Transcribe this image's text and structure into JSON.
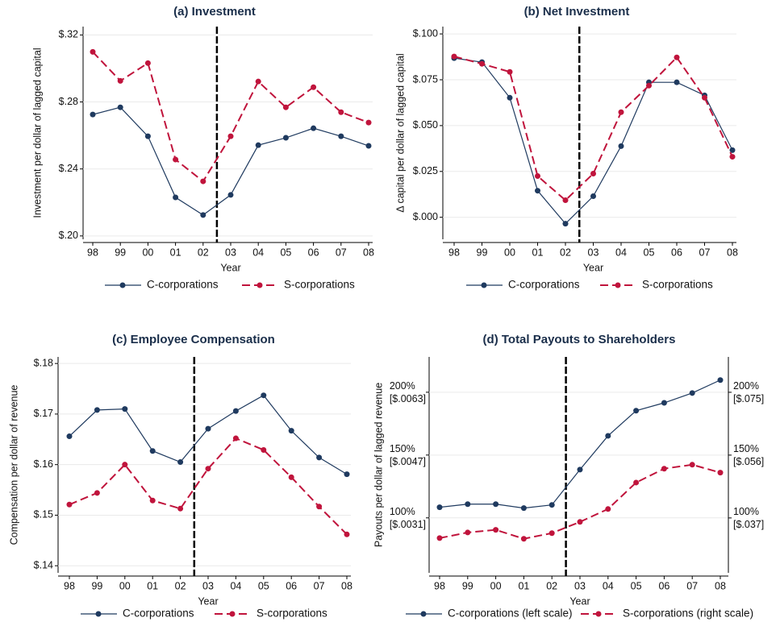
{
  "chart_data": [
    {
      "type": "line",
      "title": "(a) Investment",
      "xlabel": "Year",
      "ylabel": "Investment per dollar of lagged capital",
      "categories": [
        "98",
        "99",
        "00",
        "01",
        "02",
        "03",
        "04",
        "05",
        "06",
        "07",
        "08"
      ],
      "series": [
        {
          "name": "C-corporations",
          "color": "#1f3a5f",
          "values": [
            0.2725,
            0.2768,
            0.2595,
            0.223,
            0.2125,
            0.2245,
            0.2542,
            0.2586,
            0.2643,
            0.2595,
            0.2538
          ]
        },
        {
          "name": "S-corporations",
          "color": "#c0143c",
          "values": [
            0.3099,
            0.2926,
            0.3032,
            0.2456,
            0.2326,
            0.2595,
            0.2922,
            0.2768,
            0.2888,
            0.2739,
            0.2677
          ]
        }
      ],
      "ylim": [
        0.198,
        0.325
      ],
      "yticks": [
        {
          "value": 0.2,
          "label": "$.20"
        },
        {
          "value": 0.24,
          "label": "$.24"
        },
        {
          "value": 0.28,
          "label": "$.28"
        },
        {
          "value": 0.32,
          "label": "$.32"
        }
      ],
      "grid": true
    },
    {
      "type": "line",
      "title": "(b) Net Investment",
      "xlabel": "Year",
      "ylabel": "Δ capital per dollar of lagged capital",
      "categories": [
        "98",
        "99",
        "00",
        "01",
        "02",
        "03",
        "04",
        "05",
        "06",
        "07",
        "08"
      ],
      "series": [
        {
          "name": "C-corporations",
          "color": "#1f3a5f",
          "values": [
            0.0868,
            0.0846,
            0.0652,
            0.0145,
            -0.0035,
            0.0115,
            0.0388,
            0.0736,
            0.0736,
            0.0665,
            0.0366
          ]
        },
        {
          "name": "S-corporations",
          "color": "#c0143c",
          "values": [
            0.0877,
            0.0837,
            0.0793,
            0.0225,
            0.0093,
            0.0238,
            0.0573,
            0.0718,
            0.0872,
            0.0652,
            0.033
          ]
        }
      ],
      "ylim": [
        -0.012,
        0.104
      ],
      "yticks": [
        {
          "value": 0,
          "label": "$.000"
        },
        {
          "value": 0.025,
          "label": "$.025"
        },
        {
          "value": 0.05,
          "label": "$.050"
        },
        {
          "value": 0.075,
          "label": "$.075"
        },
        {
          "value": 0.1,
          "label": "$.100"
        }
      ],
      "grid": true
    },
    {
      "type": "line",
      "title": "(c) Employee Compensation",
      "xlabel": "Year",
      "ylabel": "Compensation per dollar of revenue",
      "categories": [
        "98",
        "99",
        "00",
        "01",
        "02",
        "03",
        "04",
        "05",
        "06",
        "07",
        "08"
      ],
      "series": [
        {
          "name": "C-corporations",
          "color": "#1f3a5f",
          "values": [
            0.1656,
            0.1708,
            0.171,
            0.1627,
            0.1605,
            0.1671,
            0.1706,
            0.1737,
            0.1667,
            0.1614,
            0.1581
          ]
        },
        {
          "name": "S-corporations",
          "color": "#c0143c",
          "values": [
            0.1521,
            0.1544,
            0.16,
            0.1529,
            0.1513,
            0.1592,
            0.1652,
            0.1629,
            0.1575,
            0.1517,
            0.1462
          ]
        }
      ],
      "ylim": [
        0.1386,
        0.1813
      ],
      "yticks": [
        {
          "value": 0.14,
          "label": "$.14"
        },
        {
          "value": 0.15,
          "label": "$.15"
        },
        {
          "value": 0.16,
          "label": "$.16"
        },
        {
          "value": 0.17,
          "label": "$.17"
        },
        {
          "value": 0.18,
          "label": "$.18"
        }
      ],
      "grid": true
    },
    {
      "type": "line",
      "title": "(d) Total Payouts to Shareholders",
      "xlabel": "Year",
      "ylabel": "Payouts per dollar of lagged revenue",
      "categories": [
        "98",
        "99",
        "00",
        "01",
        "02",
        "03",
        "04",
        "05",
        "06",
        "07",
        "08"
      ],
      "series": [
        {
          "name": "C-corporations (left scale)",
          "color": "#1f3a5f",
          "values": [
            0.00337,
            0.00345,
            0.00345,
            0.00335,
            0.00343,
            0.00433,
            0.00519,
            0.00583,
            0.00603,
            0.00628,
            0.00661
          ]
        },
        {
          "name": "S-corporations (right scale)",
          "color": "#c0143c",
          "axis": "y2",
          "values": [
            0.0309,
            0.0326,
            0.0334,
            0.0307,
            0.0324,
            0.0358,
            0.0397,
            0.0477,
            0.0519,
            0.0531,
            0.0507
          ]
        }
      ],
      "ylim": [
        0.0017,
        0.0072
      ],
      "yticks": [
        {
          "value": 0.0031,
          "label": "100%\n[$.0031]"
        },
        {
          "value": 0.0047,
          "label": "150%\n[$.0047]"
        },
        {
          "value": 0.0063,
          "label": "200%\n[$.0063]"
        }
      ],
      "y2lim": [
        0.0204,
        0.0857
      ],
      "y2ticks": [
        {
          "value": 0.037,
          "label": "100%\n[$.037]"
        },
        {
          "value": 0.056,
          "label": "150%\n[$.056]"
        },
        {
          "value": 0.075,
          "label": "200%\n[$.075]"
        }
      ],
      "grid": true
    }
  ]
}
